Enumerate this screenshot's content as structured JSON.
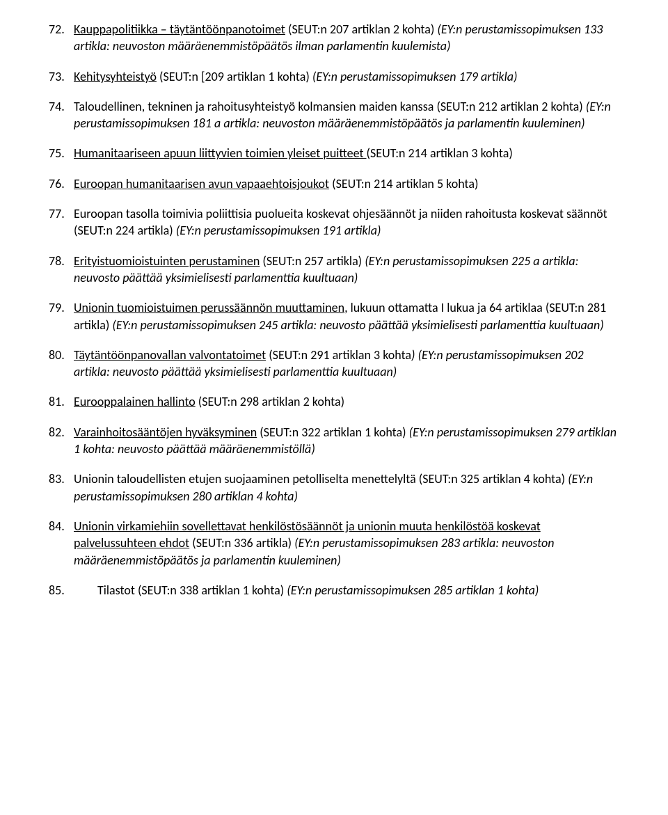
{
  "items": [
    {
      "n": "72.",
      "parts": [
        {
          "t": "Kauppapolitiikka – täytäntöönpanotoimet",
          "u": true
        },
        {
          "t": " (SEUT:n 207 artiklan 2 kohta) "
        },
        {
          "t": "(EY:n perustamissopimuksen 133 artikla: neuvoston määräenemmistöpäätös ilman parlamentin kuulemista)",
          "i": true
        }
      ]
    },
    {
      "n": "73.",
      "parts": [
        {
          "t": "Kehitysyhteistyö",
          "u": true
        },
        {
          "t": " (SEUT:n [209 artiklan 1 kohta) "
        },
        {
          "t": "(EY:n perustamissopimuksen 179 artikla)",
          "i": true
        }
      ]
    },
    {
      "n": "74.",
      "parts": [
        {
          "t": "Taloudellinen, tekninen ja rahoitusyhteistyö kolmansien maiden kanssa (SEUT:n 212 artiklan 2 kohta) "
        },
        {
          "t": "(EY:n perustamissopimuksen 181 a artikla: neuvoston määräenemmistöpäätös ja parlamentin kuuleminen)",
          "i": true
        }
      ]
    },
    {
      "n": "75.",
      "parts": [
        {
          "t": "Humanitaariseen apuun liittyvien toimien yleiset puitteet ",
          "u": true
        },
        {
          "t": "(SEUT:n 214 artiklan 3 kohta)"
        }
      ]
    },
    {
      "n": "76.",
      "parts": [
        {
          "t": "Euroopan humanitaarisen avun vapaaehtoisjoukot",
          "u": true
        },
        {
          "t": " (SEUT:n 214 artiklan 5 kohta)"
        }
      ]
    },
    {
      "n": "77.",
      "parts": [
        {
          "t": "Euroopan tasolla toimivia poliittisia puolueita koskevat ohjesäännöt ja niiden rahoitusta koskevat säännöt (SEUT:n 224 artikla) "
        },
        {
          "t": "(EY:n perustamissopimuksen 191 artikla)",
          "i": true
        }
      ]
    },
    {
      "n": "78.",
      "parts": [
        {
          "t": "Erityistuomioistuinten perustaminen",
          "u": true
        },
        {
          "t": " (SEUT:n 257 artikla) "
        },
        {
          "t": "(EY:n perustamissopimuksen 225 a artikla: neuvosto päättää yksimielisesti parlamenttia kuultuaan)",
          "i": true
        }
      ]
    },
    {
      "n": "79.",
      "parts": [
        {
          "t": "Unionin tuomioistuimen perussäännön muuttaminen",
          "u": true
        },
        {
          "t": ", lukuun ottamatta I lukua ja 64 artiklaa (SEUT:n 281 artikla) "
        },
        {
          "t": "(EY:n perustamissopimuksen 245 artikla: neuvosto päättää yksimielisesti parlamenttia kuultuaan)",
          "i": true
        }
      ]
    },
    {
      "n": "80.",
      "parts": [
        {
          "t": "Täytäntöönpanovallan valvontatoimet",
          "u": true
        },
        {
          "t": " (SEUT:n 291 artiklan 3 kohta"
        },
        {
          "t": ") (EY:n perustamissopimuksen 202 artikla: neuvosto päättää yksimielisesti parlamenttia kuultuaan)",
          "i": true
        }
      ]
    },
    {
      "n": "81.",
      "parts": [
        {
          "t": "Eurooppalainen hallinto",
          "u": true
        },
        {
          "t": " (SEUT:n 298 artiklan 2 kohta)"
        }
      ]
    },
    {
      "n": "82.",
      "parts": [
        {
          "t": "Varainhoitosääntöjen hyväksyminen",
          "u": true
        },
        {
          "t": " (SEUT:n 322 artiklan 1 kohta) "
        },
        {
          "t": "(EY:n perustamissopimuksen 279 artiklan 1 kohta: neuvosto päättää määräenemmistöllä)",
          "i": true
        }
      ]
    },
    {
      "n": "83.",
      "parts": [
        {
          "t": "Unionin taloudellisten etujen suojaaminen petolliselta menettelyltä (SEUT:n 325 artiklan 4 kohta) "
        },
        {
          "t": "(EY:n perustamissopimuksen 280 artiklan 4 kohta)",
          "i": true
        }
      ]
    },
    {
      "n": "84.",
      "parts": [
        {
          "t": "Unionin virkamiehiin sovellettavat henkilöstösäännöt ja unionin muuta henkilöstöä koskevat palvelussuhteen ehdot",
          "u": true
        },
        {
          "t": " (SEUT:n 336 artikla) "
        },
        {
          "t": "(EY:n perustamissopimuksen 283 artikla: neuvoston määräenemmistöpäätös ja parlamentin kuuleminen)",
          "i": true
        }
      ]
    },
    {
      "n": "85.",
      "last": true,
      "parts": [
        {
          "t": "Tilastot (SEUT:n 338 artiklan 1 kohta) "
        },
        {
          "t": "(EY:n perustamissopimuksen 285 artiklan 1 kohta)",
          "i": true
        }
      ]
    }
  ]
}
